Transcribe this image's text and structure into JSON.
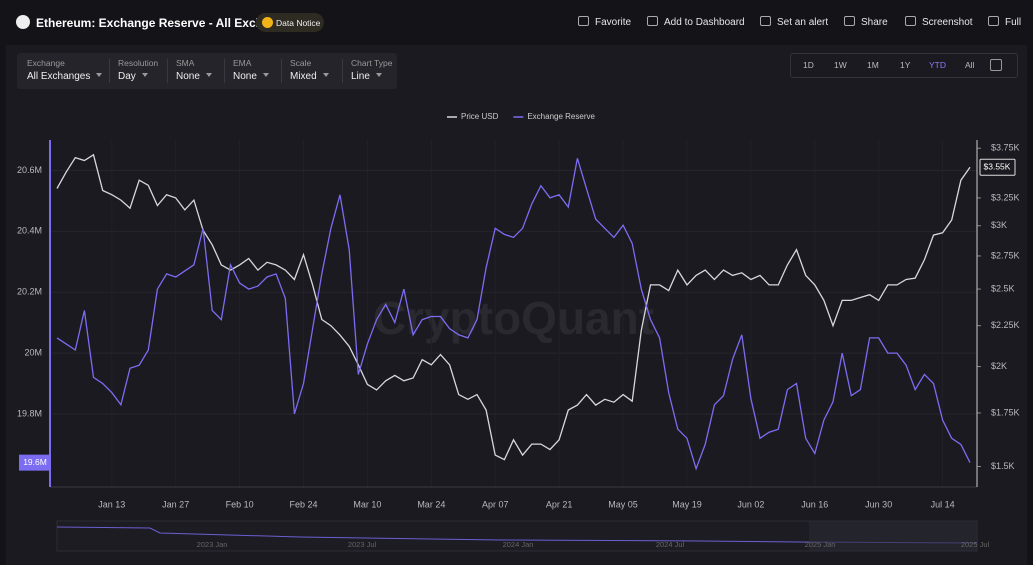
{
  "header": {
    "title": "Ethereum: Exchange Reserve - All Exchanges",
    "notice": "Data Notice",
    "actions": [
      "Favorite",
      "Add to Dashboard",
      "Set an alert",
      "Share",
      "Screenshot",
      "Full"
    ]
  },
  "controls": [
    {
      "label": "Exchange",
      "value": "All Exchanges"
    },
    {
      "label": "Resolution",
      "value": "Day"
    },
    {
      "label": "SMA",
      "value": "None"
    },
    {
      "label": "EMA",
      "value": "None"
    },
    {
      "label": "Scale",
      "value": "Mixed"
    },
    {
      "label": "Chart Type",
      "value": "Line"
    }
  ],
  "ranges": [
    "1D",
    "1W",
    "1M",
    "1Y",
    "YTD",
    "All"
  ],
  "active_range": 4,
  "watermark": "CryptoQuant",
  "navigator_labels": [
    "2023 Jan",
    "2023 Jul",
    "2024 Jan",
    "2024 Jul",
    "2025 Jan",
    "2025 Jul"
  ],
  "chart_data": {
    "type": "line",
    "categories": [
      null,
      null,
      null,
      null,
      null,
      null,
      "Jan 13",
      null,
      null,
      null,
      null,
      null,
      null,
      "Jan 27",
      null,
      null,
      null,
      null,
      null,
      null,
      "Feb 10",
      null,
      null,
      null,
      null,
      null,
      null,
      "Feb 24",
      null,
      null,
      null,
      null,
      null,
      null,
      "Mar 10",
      null,
      null,
      null,
      null,
      null,
      null,
      "Mar 24",
      null,
      null,
      null,
      null,
      null,
      null,
      "Apr 07",
      null,
      null,
      null,
      null,
      null,
      null,
      "Apr 21",
      null,
      null,
      null,
      null,
      null,
      null,
      "May 05",
      null,
      null,
      null,
      null,
      null,
      null,
      "May 19",
      null,
      null,
      null,
      null,
      null,
      null,
      "Jun 02",
      null,
      null,
      null,
      null,
      null,
      null,
      "Jun 16",
      null,
      null,
      null,
      null,
      null,
      null,
      "Jun 30",
      null,
      null,
      null,
      null,
      null,
      null,
      "Jul 14",
      null,
      null,
      null
    ],
    "series": [
      {
        "name": "Price USD",
        "color": "#d8d8dc",
        "axis": "y2",
        "end_label": "$3.55K",
        "values": [
          3340,
          3500,
          3650,
          3620,
          3680,
          3320,
          3280,
          3230,
          3155,
          3420,
          3370,
          3180,
          3280,
          3250,
          3140,
          3230,
          2960,
          2840,
          2680,
          2640,
          2680,
          2730,
          2640,
          2700,
          2680,
          2640,
          2570,
          2760,
          2530,
          2290,
          2250,
          2190,
          2120,
          2010,
          1900,
          1870,
          1920,
          1950,
          1920,
          1935,
          2040,
          2010,
          2070,
          2010,
          1845,
          1820,
          1845,
          1765,
          1550,
          1530,
          1620,
          1550,
          1600,
          1600,
          1575,
          1620,
          1765,
          1790,
          1845,
          1790,
          1820,
          1805,
          1845,
          1810,
          2220,
          2530,
          2530,
          2490,
          2640,
          2530,
          2600,
          2640,
          2570,
          2640,
          2600,
          2620,
          2570,
          2600,
          2530,
          2530,
          2680,
          2800,
          2600,
          2530,
          2420,
          2250,
          2420,
          2420,
          2440,
          2460,
          2420,
          2530,
          2530,
          2570,
          2580,
          2720,
          2920,
          2940,
          3050,
          3420,
          3550
        ]
      },
      {
        "name": "Exchange Reserve",
        "color": "#7b6cf2",
        "end_label": "19.6M",
        "values": [
          20050000,
          20030000,
          20010000,
          20140000,
          19920000,
          19900000,
          19870000,
          19830000,
          19950000,
          19960000,
          20010000,
          20210000,
          20260000,
          20250000,
          20270000,
          20290000,
          20410000,
          20140000,
          20110000,
          20290000,
          20230000,
          20210000,
          20220000,
          20250000,
          20260000,
          20180000,
          19800000,
          19900000,
          20080000,
          20260000,
          20410000,
          20520000,
          20340000,
          19930000,
          20030000,
          20110000,
          20160000,
          20100000,
          20210000,
          20060000,
          20110000,
          20120000,
          20120000,
          20080000,
          20060000,
          20050000,
          20110000,
          20280000,
          20410000,
          20390000,
          20380000,
          20410000,
          20490000,
          20550000,
          20510000,
          20520000,
          20480000,
          20640000,
          20540000,
          20440000,
          20410000,
          20380000,
          20420000,
          20360000,
          20210000,
          20110000,
          20050000,
          19870000,
          19750000,
          19720000,
          19620000,
          19700000,
          19830000,
          19860000,
          19980000,
          20060000,
          19850000,
          19720000,
          19740000,
          19750000,
          19880000,
          19900000,
          19720000,
          19670000,
          19780000,
          19840000,
          20000000,
          19860000,
          19880000,
          20050000,
          20050000,
          20000000,
          20000000,
          19960000,
          19880000,
          19930000,
          19900000,
          19780000,
          19720000,
          19700000,
          19640000
        ]
      }
    ],
    "ylim": [
      19560000,
      20700000
    ],
    "yticks": [
      {
        "value": 19800000,
        "label": "19.8M"
      },
      {
        "value": 20000000,
        "label": "20M"
      },
      {
        "value": 20200000,
        "label": "20.2M"
      },
      {
        "value": 20400000,
        "label": "20.4M"
      },
      {
        "value": 20600000,
        "label": "20.6M"
      }
    ],
    "y2lim": [
      1414,
      3840
    ],
    "y2scale": "log",
    "y2ticks": [
      {
        "value": 1500,
        "label": "$1.5K"
      },
      {
        "value": 1750,
        "label": "$1.75K"
      },
      {
        "value": 2000,
        "label": "$2K"
      },
      {
        "value": 2250,
        "label": "$2.25K"
      },
      {
        "value": 2500,
        "label": "$2.5K"
      },
      {
        "value": 2750,
        "label": "$2.75K"
      },
      {
        "value": 3000,
        "label": "$3K"
      },
      {
        "value": 3250,
        "label": "$3.25K"
      },
      {
        "value": 3750,
        "label": "$3.75K"
      }
    ],
    "grid": true
  }
}
